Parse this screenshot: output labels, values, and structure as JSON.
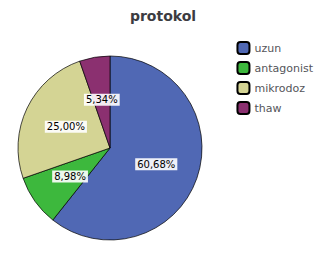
{
  "chart_data": {
    "type": "pie",
    "title": "protokol",
    "categories": [
      "uzun",
      "antagonist",
      "mikrodoz",
      "thaw"
    ],
    "values": [
      60.68,
      8.98,
      25.0,
      5.34
    ],
    "value_labels": [
      "60,68%",
      "8,98%",
      "25,00%",
      "5,34%"
    ],
    "colors": [
      "#5068b4",
      "#3db83d",
      "#d4d494",
      "#8b3070"
    ],
    "legend": "upper right",
    "data_labels": true
  }
}
